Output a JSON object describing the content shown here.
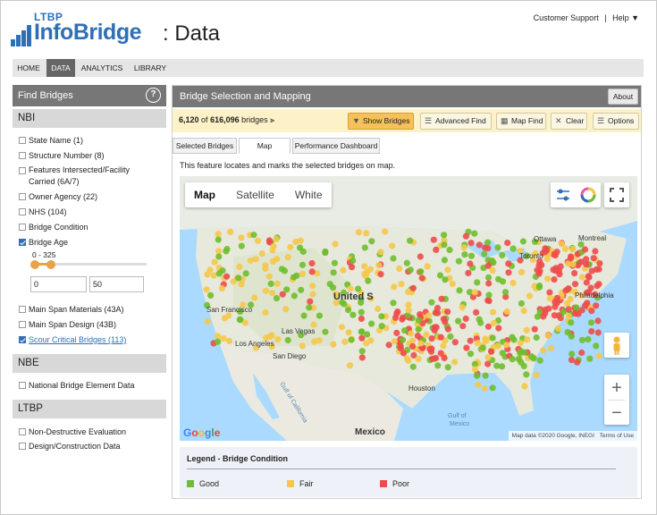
{
  "header": {
    "logo_small": "LTBP",
    "logo_brand": "InfoBridge",
    "logo_suffix": ": Data",
    "links": [
      "Customer Support",
      "|",
      "Help ▼"
    ]
  },
  "nav": [
    "HOME",
    "DATA",
    "ANALYTICS",
    "LIBRARY"
  ],
  "nav_active": "DATA",
  "sidebar": {
    "title": "Find Bridges",
    "help_icon": "?",
    "sections": [
      {
        "name": "NBI",
        "filters": [
          {
            "label": "State Name (1)",
            "checked": false
          },
          {
            "label": "Structure Number (8)",
            "checked": false
          },
          {
            "label": "Features Intersected/Facility",
            "label2": "Carried (6A/7)",
            "checked": false
          },
          {
            "label": "Owner Agency (22)",
            "checked": false
          },
          {
            "label": "NHS (104)",
            "checked": false
          },
          {
            "label": "Bridge Condition",
            "checked": false
          },
          {
            "label": "Bridge Age",
            "checked": true
          },
          {
            "label": "Main Span Materials (43A)",
            "checked": false
          },
          {
            "label": "Main Span Design (43B)",
            "checked": false
          },
          {
            "label": "Scour Critical Bridges (113)",
            "checked": true,
            "link": true
          }
        ]
      },
      {
        "name": "NBE",
        "filters": [
          {
            "label": "National Bridge Element Data",
            "checked": false
          }
        ]
      },
      {
        "name": "LTBP",
        "filters": [
          {
            "label": "Non-Destructive Evaluation",
            "checked": false
          },
          {
            "label": "Design/Construction Data",
            "checked": false
          }
        ]
      }
    ],
    "age_range": {
      "label": "0 - 325",
      "min": "0",
      "max": "50",
      "fraction_selected": 0.154
    }
  },
  "panel": {
    "title": "Bridge Selection and Mapping",
    "about": "About",
    "count_selected": "6,120",
    "count_of": "of",
    "count_total": "616,096",
    "count_unit": "bridges",
    "buttons": [
      "Show Bridges",
      "Advanced Find",
      "Map Find",
      "Clear",
      "Options"
    ],
    "tabs": [
      "Selected Bridges",
      "Map",
      "Performance Dashboard"
    ],
    "active_tab": "Map",
    "intro": "This feature locates and marks the selected bridges on map."
  },
  "map": {
    "types": [
      "Map",
      "Satellite",
      "White"
    ],
    "active_type": "Map",
    "labels": {
      "ottawa": "Ottawa",
      "montreal": "Montreal",
      "toronto": "Toronto",
      "united": "United S",
      "philadelphia": "Philadelphia",
      "sanfrancisco": "San Francisco",
      "lasvegas": "Las Vegas",
      "losangeles": "Los Angeles",
      "sandiego": "San Diego",
      "houston": "Houston",
      "gulf": "Gulf of",
      "gulf2": "Mexico",
      "gulfcal": "Gulf of California",
      "mexico": "Mexico"
    },
    "google": "Google",
    "attribution": "Map data ©2020 Google, INEGI",
    "terms": "Terms of Use",
    "zoom_in": "+",
    "zoom_out": "−",
    "icons": [
      "filter-sliders-icon",
      "color-wheel-icon",
      "fullscreen-icon",
      "pegman-icon"
    ]
  },
  "legend": {
    "title": "Legend - Bridge Condition",
    "items": [
      {
        "label": "Good",
        "color": "#6fbe2e"
      },
      {
        "label": "Fair",
        "color": "#f5c84a"
      },
      {
        "label": "Poor",
        "color": "#ee4b4b"
      }
    ]
  },
  "colors": {
    "accent": "#2f6fb5",
    "bar": "#777777",
    "toolbar": "#fdf2c7",
    "highlight": "#f4c15a"
  }
}
